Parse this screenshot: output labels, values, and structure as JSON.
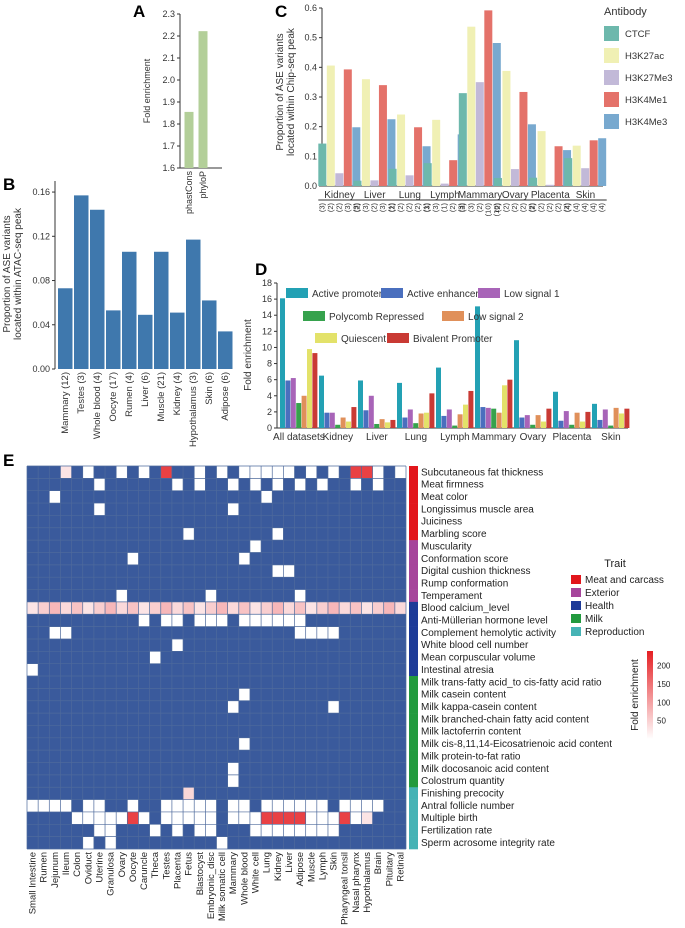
{
  "panel_letters": {
    "a": "A",
    "b": "B",
    "c": "C",
    "d": "D",
    "e": "E"
  },
  "chart_data": [
    {
      "panel": "A",
      "type": "bar",
      "title": "",
      "xlabel": "",
      "ylabel": "Fold enrichment",
      "categories": [
        "phastCons",
        "phyloP"
      ],
      "values": [
        1.855,
        2.222
      ],
      "ylim": [
        1.6,
        2.3
      ],
      "yticks": [
        "1.6",
        "1.7",
        "1.8",
        "1.9",
        "2.0",
        "2.1",
        "2.2",
        "2.3"
      ],
      "color": "#b3cf99"
    },
    {
      "panel": "B",
      "type": "bar",
      "title": "",
      "xlabel": "",
      "ylabel_lines": [
        "Proportion of ASE variants",
        "located within ATAC-seq peak"
      ],
      "categories": [
        "Mammary (12)",
        "Testes (3)",
        "Whole blood (4)",
        "Oocyte (17)",
        "Rumen (4)",
        "Liver (6)",
        "Muscle (21)",
        "Kidney (4)",
        "Hypothalamus (3)",
        "Skin (6)",
        "Adipose (6)"
      ],
      "values": [
        0.073,
        0.157,
        0.144,
        0.053,
        0.106,
        0.049,
        0.106,
        0.051,
        0.117,
        0.062,
        0.034
      ],
      "ylim": [
        0,
        0.17
      ],
      "yticks": [
        "0.00",
        "0.04",
        "0.08",
        "0.12",
        "0.16"
      ],
      "color": "#3f78ad"
    },
    {
      "panel": "C",
      "type": "bar",
      "title": "",
      "xlabel": "",
      "ylabel_lines": [
        "Proportion of ASE variants",
        "located within Chip-seq peak"
      ],
      "legend_title": "Antibody",
      "categories": [
        "Kidney",
        "Liver",
        "Lung",
        "Lymph",
        "Mammary",
        "Ovary",
        "Placenta",
        "Skin"
      ],
      "sample_counts": [
        [
          "(3)",
          "(2)",
          "(2)",
          "(3)",
          "(3)"
        ],
        [
          "(2)",
          "(3)",
          "(2)",
          "(3)",
          "(1)"
        ],
        [
          "(2)",
          "(2)",
          "(2)",
          "(2)",
          "(1)"
        ],
        [
          "(3)",
          "(3)",
          "(1)",
          "(2)",
          "(3)"
        ],
        [
          "(3)",
          "(3)",
          "(2)",
          "(10)",
          "(10)"
        ],
        [
          "(2)",
          "(2)",
          "(2)",
          "(2)",
          "(2)"
        ],
        [
          "(2)",
          "(2)",
          "(2)",
          "(2)",
          "(2)"
        ],
        [
          "(4)",
          "(4)",
          "(4)",
          "(4)",
          "(4)"
        ]
      ],
      "series": [
        {
          "name": "CTCF",
          "color": "#6db8ac",
          "values": [
            0.143,
            0.018,
            0.058,
            0.077,
            0.313,
            0.027,
            0.028,
            0.094
          ]
        },
        {
          "name": "H3K27ac",
          "color": "#f0f0b4",
          "values": [
            0.406,
            0.36,
            0.241,
            0.223,
            0.537,
            0.388,
            0.185,
            0.136
          ]
        },
        {
          "name": "H3K27Me3",
          "color": "#c2b9d8",
          "values": [
            0.043,
            0.019,
            0.036,
            0.008,
            0.35,
            0.057,
            0.004,
            0.06
          ]
        },
        {
          "name": "H3K4Me1",
          "color": "#e4726a",
          "values": [
            0.393,
            0.34,
            0.198,
            0.087,
            0.592,
            0.317,
            0.134,
            0.154
          ]
        },
        {
          "name": "H3K4Me3",
          "color": "#78a9cf",
          "values": [
            0.198,
            0.225,
            0.134,
            0.174,
            0.482,
            0.208,
            0.121,
            0.161
          ]
        }
      ],
      "ylim": [
        0,
        0.6
      ],
      "yticks": [
        "0.0",
        "0.1",
        "0.2",
        "0.3",
        "0.4",
        "0.5",
        "0.6"
      ]
    },
    {
      "panel": "D",
      "type": "bar",
      "title": "",
      "xlabel": "",
      "ylabel": "Fold enrichment",
      "categories": [
        "All datasets",
        "Kidney",
        "Liver",
        "Lung",
        "Lymph",
        "Mammary",
        "Ovary",
        "Placenta",
        "Skin"
      ],
      "series": [
        {
          "name": "Active promoter",
          "color": "#23a1b4",
          "values": [
            16.1,
            6.5,
            5.9,
            5.6,
            7.5,
            15.1,
            10.9,
            4.5,
            3.0
          ]
        },
        {
          "name": "Active enhancer",
          "color": "#4a6fbe",
          "values": [
            5.9,
            1.9,
            2.2,
            1.3,
            1.5,
            2.6,
            1.3,
            0.9,
            1.0
          ]
        },
        {
          "name": "Low signal 1",
          "color": "#a864b8",
          "values": [
            6.2,
            1.9,
            4.0,
            2.3,
            2.3,
            2.5,
            1.6,
            2.1,
            2.3
          ]
        },
        {
          "name": "Polycomb Repressed",
          "color": "#36a24d",
          "values": [
            3.1,
            0.4,
            0.5,
            0.6,
            0.3,
            2.4,
            0.4,
            0.4,
            0.3
          ]
        },
        {
          "name": "Low signal 2",
          "color": "#e0905a",
          "values": [
            4.0,
            1.3,
            1.1,
            1.8,
            1.7,
            1.9,
            1.6,
            1.9,
            2.5
          ]
        },
        {
          "name": "Quiescent",
          "color": "#e3e26a",
          "values": [
            9.8,
            0.8,
            0.7,
            1.9,
            2.9,
            5.3,
            0.8,
            0.8,
            1.8
          ]
        },
        {
          "name": "Bivalent Promoter",
          "color": "#c93a34",
          "values": [
            9.3,
            2.6,
            1.0,
            4.3,
            4.6,
            6.0,
            2.4,
            2.0,
            2.4
          ]
        }
      ],
      "ylim": [
        0,
        18
      ],
      "yticks": [
        "0",
        "2",
        "4",
        "6",
        "8",
        "10",
        "12",
        "14",
        "16",
        "18"
      ]
    },
    {
      "panel": "E",
      "type": "heatmap",
      "title": "",
      "xlabel": "",
      "ylabel": "",
      "columns": [
        "Small Intestine",
        "Rumen",
        "Jejunum",
        "Ileum",
        "Colon",
        "Oviduct",
        "Uterine",
        "Granulosa",
        "Ovary",
        "Oocyte",
        "Caruncle",
        "Theca",
        "Testes",
        "Placenta",
        "Fetus",
        "Blastocyst",
        "Embryonic_disc",
        "Milk somatic cell",
        "Mammary",
        "Whole blood",
        "White cell",
        "Lung",
        "Kidney",
        "Liver",
        "Adipose",
        "Muscle",
        "Lymph",
        "Skin",
        "Pharyngeal tonsil",
        "Nasal pharynx",
        "Hypothalamus",
        "Brain",
        "Pituitary",
        "Retinal"
      ],
      "rows": [
        "Subcutaneous fat thickness",
        "Meat firmness",
        "Meat color",
        "Longissimus muscle area",
        "Juiciness",
        "Marbling score",
        "Muscularity",
        "Conformation score",
        "Digital cushion thickness",
        "Rump conformation",
        "Temperament",
        "Blood calcium_level",
        "Anti-Müllerian hormone level",
        "Complement hemolytic activity",
        "White blood cell number",
        "Mean corpuscular volume",
        "Intestinal atresia",
        "Milk trans-fatty acid_to cis-fatty acid ratio",
        "Milk casein content",
        "Milk kappa-casein content",
        "Milk branched-chain fatty acid content",
        "Milk lactoferrin content",
        "Milk cis-8,11,14-Eicosatrienoic acid content",
        "Milk protein-to-fat ratio",
        "Milk docosanoic acid content",
        "Colostrum quantity",
        "Finishing precocity",
        "Antral follicle number",
        "Multiple birth",
        "Fertilization rate",
        "Sperm acrosome integrity rate"
      ],
      "row_traits": [
        "Meat and carcass",
        "Meat and carcass",
        "Meat and carcass",
        "Meat and carcass",
        "Meat and carcass",
        "Meat and carcass",
        "Exterior",
        "Exterior",
        "Exterior",
        "Exterior",
        "Exterior",
        "Health",
        "Health",
        "Health",
        "Health",
        "Health",
        "Health",
        "Milk",
        "Milk",
        "Milk",
        "Milk",
        "Milk",
        "Milk",
        "Milk",
        "Milk",
        "Milk",
        "Reproduction",
        "Reproduction",
        "Reproduction",
        "Reproduction",
        "Reproduction"
      ],
      "cells": [
        [
          1,
          3
        ],
        [
          1,
          5
        ],
        [
          1,
          8
        ],
        [
          1,
          10
        ],
        [
          1,
          12
        ],
        [
          1,
          15
        ],
        [
          1,
          17
        ],
        [
          1,
          19
        ],
        [
          1,
          20
        ],
        [
          1,
          21
        ],
        [
          1,
          22
        ],
        [
          1,
          23
        ],
        [
          1,
          25
        ],
        [
          1,
          27
        ],
        [
          1,
          29
        ],
        [
          1,
          30
        ],
        [
          1,
          31
        ],
        [
          1,
          33
        ],
        [
          2,
          6
        ],
        [
          2,
          13
        ],
        [
          2,
          15
        ],
        [
          2,
          18
        ],
        [
          2,
          20
        ],
        [
          2,
          22
        ],
        [
          2,
          24
        ],
        [
          2,
          26
        ],
        [
          2,
          29
        ],
        [
          2,
          31
        ],
        [
          3,
          2
        ],
        [
          3,
          21
        ],
        [
          4,
          6
        ],
        [
          4,
          18
        ],
        [
          6,
          14
        ],
        [
          6,
          22
        ],
        [
          7,
          20
        ],
        [
          8,
          9
        ],
        [
          8,
          19
        ],
        [
          9,
          22
        ],
        [
          9,
          23
        ],
        [
          11,
          8
        ],
        [
          11,
          16
        ],
        [
          11,
          24
        ],
        [
          12,
          0
        ],
        [
          12,
          1
        ],
        [
          12,
          2
        ],
        [
          12,
          3
        ],
        [
          12,
          4
        ],
        [
          12,
          5
        ],
        [
          12,
          6
        ],
        [
          12,
          7
        ],
        [
          12,
          8
        ],
        [
          12,
          9
        ],
        [
          12,
          10
        ],
        [
          12,
          11
        ],
        [
          12,
          12
        ],
        [
          12,
          13
        ],
        [
          12,
          14
        ],
        [
          12,
          15
        ],
        [
          12,
          16
        ],
        [
          12,
          17
        ],
        [
          12,
          18
        ],
        [
          12,
          19
        ],
        [
          12,
          20
        ],
        [
          12,
          21
        ],
        [
          12,
          22
        ],
        [
          12,
          23
        ],
        [
          12,
          24
        ],
        [
          12,
          25
        ],
        [
          12,
          26
        ],
        [
          12,
          27
        ],
        [
          12,
          28
        ],
        [
          12,
          29
        ],
        [
          12,
          30
        ],
        [
          12,
          31
        ],
        [
          12,
          32
        ],
        [
          12,
          33
        ],
        [
          13,
          10
        ],
        [
          13,
          12
        ],
        [
          13,
          13
        ],
        [
          13,
          15
        ],
        [
          13,
          16
        ],
        [
          13,
          17
        ],
        [
          13,
          19
        ],
        [
          13,
          20
        ],
        [
          13,
          21
        ],
        [
          13,
          22
        ],
        [
          13,
          23
        ],
        [
          13,
          24
        ],
        [
          14,
          2
        ],
        [
          14,
          3
        ],
        [
          14,
          24
        ],
        [
          14,
          25
        ],
        [
          14,
          26
        ],
        [
          14,
          27
        ],
        [
          15,
          13
        ],
        [
          16,
          11
        ],
        [
          17,
          0
        ],
        [
          19,
          19
        ],
        [
          20,
          18
        ],
        [
          20,
          27
        ],
        [
          23,
          19
        ],
        [
          25,
          18
        ],
        [
          26,
          18
        ],
        [
          27,
          14
        ],
        [
          28,
          0
        ],
        [
          28,
          1
        ],
        [
          28,
          2
        ],
        [
          28,
          3
        ],
        [
          28,
          5
        ],
        [
          28,
          6
        ],
        [
          28,
          9
        ],
        [
          28,
          12
        ],
        [
          28,
          13
        ],
        [
          28,
          14
        ],
        [
          28,
          15
        ],
        [
          28,
          16
        ],
        [
          28,
          18
        ],
        [
          28,
          19
        ],
        [
          28,
          21
        ],
        [
          28,
          22
        ],
        [
          28,
          23
        ],
        [
          28,
          24
        ],
        [
          28,
          25
        ],
        [
          28,
          26
        ],
        [
          28,
          28
        ],
        [
          28,
          29
        ],
        [
          28,
          30
        ],
        [
          28,
          31
        ],
        [
          29,
          4
        ],
        [
          29,
          5
        ],
        [
          29,
          6
        ],
        [
          29,
          7
        ],
        [
          29,
          8
        ],
        [
          29,
          9
        ],
        [
          29,
          10
        ],
        [
          29,
          12
        ],
        [
          29,
          13
        ],
        [
          29,
          14
        ],
        [
          29,
          15
        ],
        [
          29,
          16
        ],
        [
          29,
          18
        ],
        [
          29,
          19
        ],
        [
          29,
          20
        ],
        [
          29,
          21
        ],
        [
          29,
          22
        ],
        [
          29,
          23
        ],
        [
          29,
          24
        ],
        [
          29,
          25
        ],
        [
          29,
          26
        ],
        [
          29,
          27
        ],
        [
          29,
          28
        ],
        [
          29,
          29
        ],
        [
          29,
          30
        ],
        [
          30,
          6
        ],
        [
          30,
          7
        ],
        [
          30,
          11
        ],
        [
          30,
          13
        ],
        [
          30,
          15
        ],
        [
          30,
          16
        ],
        [
          30,
          20
        ],
        [
          30,
          21
        ],
        [
          30,
          22
        ],
        [
          30,
          23
        ],
        [
          30,
          24
        ],
        [
          30,
          25
        ],
        [
          30,
          26
        ],
        [
          30,
          27
        ],
        [
          31,
          5
        ],
        [
          31,
          7
        ],
        [
          31,
          17
        ],
        [
          32,
          7
        ],
        [
          32,
          12
        ]
      ],
      "legend_title": "Trait",
      "traits": [
        {
          "name": "Meat and carcass",
          "color": "#e2161c"
        },
        {
          "name": "Exterior",
          "color": "#a6459b"
        },
        {
          "name": "Health",
          "color": "#1d3b98"
        },
        {
          "name": "Milk",
          "color": "#229a3e"
        },
        {
          "name": "Reproduction",
          "color": "#46b3b5"
        }
      ],
      "colorbar_title": "Fold enrichment",
      "colorbar_ticks": [
        "50",
        "100",
        "150",
        "200"
      ],
      "colorbar_range": [
        0,
        240
      ],
      "low_color": "#ffffff",
      "high_color": "#e51f23",
      "background_color": "#3a5a9c"
    }
  ]
}
